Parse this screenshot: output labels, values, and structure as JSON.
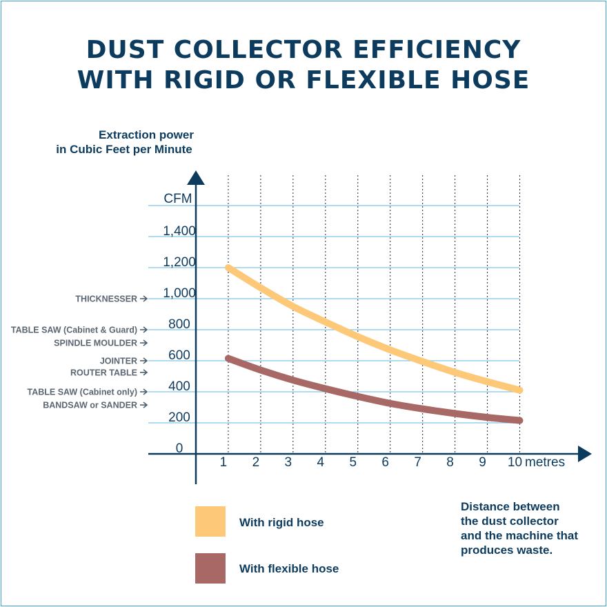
{
  "title": {
    "line1": "DUST COLLECTOR EFFICIENCY",
    "line2": "WITH RIGID OR FLEXIBLE HOSE"
  },
  "y_axis": {
    "title_line1": "Extraction power",
    "title_line2": "in Cubic Feet per Minute",
    "unit": "CFM",
    "ticks": [
      "0",
      "200",
      "400",
      "600",
      "800",
      "1,000",
      "1,200",
      "1,400"
    ]
  },
  "x_axis": {
    "unit": "metres",
    "ticks": [
      "1",
      "2",
      "3",
      "4",
      "5",
      "6",
      "7",
      "8",
      "9",
      "10"
    ],
    "note": [
      "Distance between",
      "the dust collector",
      "and the machine that",
      "produces waste."
    ]
  },
  "machines": [
    {
      "label": "THICKNESSER",
      "cfm": 1000
    },
    {
      "label": "TABLE SAW (Cabinet & Guard)",
      "cfm": 800
    },
    {
      "label": "SPINDLE MOULDER",
      "cfm": 715
    },
    {
      "label": "JOINTER",
      "cfm": 600
    },
    {
      "label": "ROUTER TABLE",
      "cfm": 525
    },
    {
      "label": "TABLE SAW (Cabinet only)",
      "cfm": 400
    },
    {
      "label": "BANDSAW or SANDER",
      "cfm": 315
    }
  ],
  "legend": [
    {
      "label": "With rigid hose",
      "color": "#fdc877"
    },
    {
      "label": "With flexible hose",
      "color": "#a76866"
    }
  ],
  "colors": {
    "axis": "#0d3b5e",
    "gridline": "#7fc8e6",
    "arrow": "#4b5f6e"
  },
  "chart_data": {
    "type": "line",
    "title": "DUST COLLECTOR EFFICIENCY WITH RIGID OR FLEXIBLE HOSE",
    "xlabel": "metres",
    "ylabel": "Extraction power in Cubic Feet per Minute",
    "x": [
      1,
      2,
      3,
      4,
      5,
      6,
      7,
      8,
      9,
      10
    ],
    "series": [
      {
        "name": "With rigid hose",
        "values": [
          1200,
          1070,
          950,
          850,
          755,
          670,
          595,
          525,
          465,
          410
        ]
      },
      {
        "name": "With flexible hose",
        "values": [
          615,
          540,
          475,
          420,
          370,
          325,
          290,
          260,
          235,
          215
        ]
      }
    ],
    "xlim": [
      0,
      10
    ],
    "ylim": [
      0,
      1600
    ],
    "grid": true,
    "legend": "bottom-left"
  }
}
